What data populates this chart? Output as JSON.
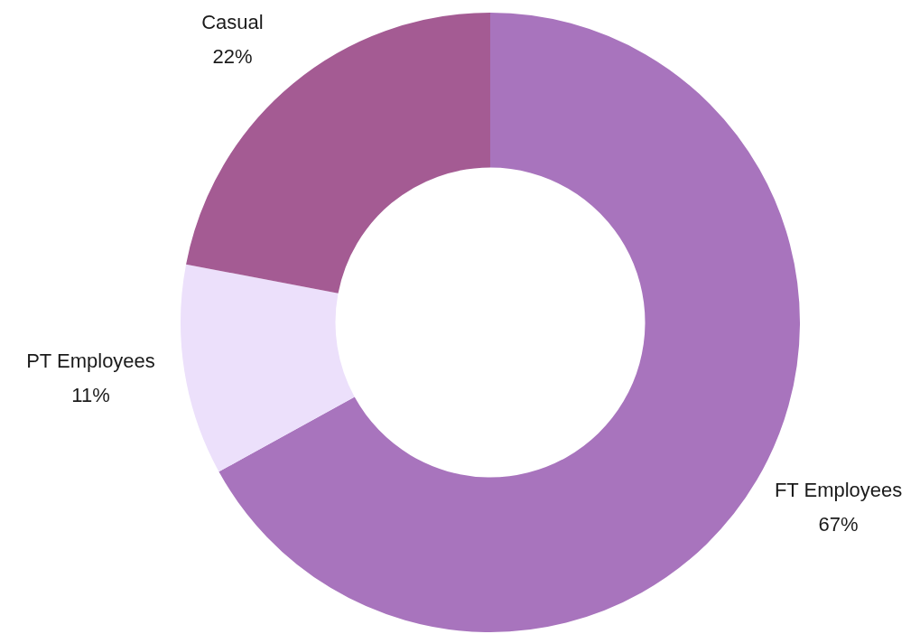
{
  "chart_data": {
    "type": "donut",
    "categories": [
      "FT Employees",
      "PT Employees",
      "Casual"
    ],
    "values": [
      67,
      11,
      22
    ],
    "value_labels": [
      "67%",
      "11%",
      "22%"
    ],
    "colors": [
      "#a874bd",
      "#ece0fb",
      "#a45b93"
    ]
  }
}
